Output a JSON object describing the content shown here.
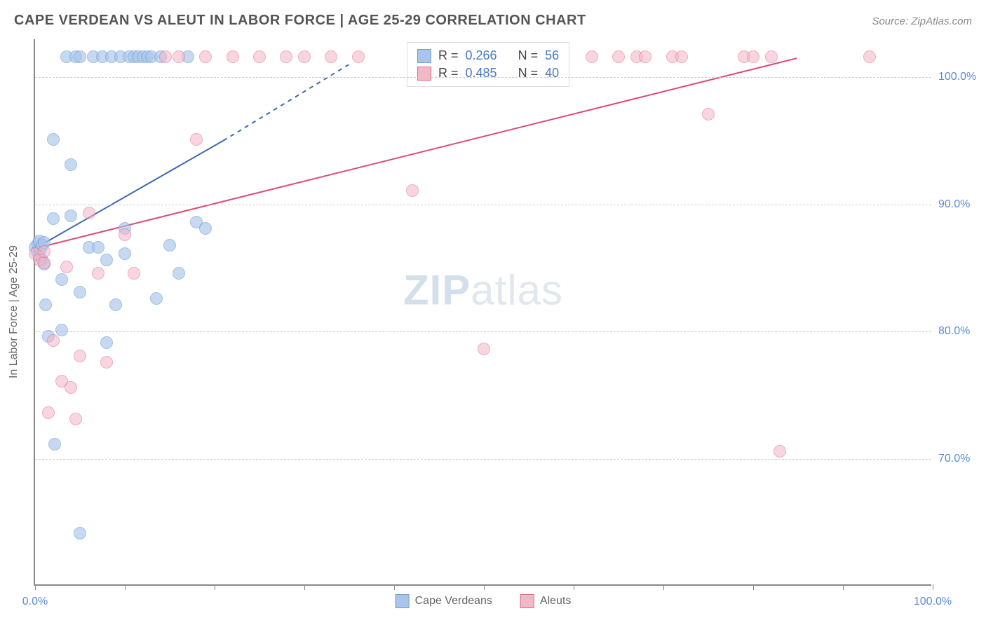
{
  "title": "CAPE VERDEAN VS ALEUT IN LABOR FORCE | AGE 25-29 CORRELATION CHART",
  "source": "Source: ZipAtlas.com",
  "ylabel": "In Labor Force | Age 25-29",
  "watermark_a": "ZIP",
  "watermark_b": "atlas",
  "chart": {
    "type": "scatter",
    "xlim": [
      0,
      100
    ],
    "ylim": [
      60,
      103
    ],
    "x_ticks": [
      0,
      10,
      20,
      30,
      40,
      50,
      60,
      70,
      80,
      90,
      100
    ],
    "x_tick_labels": {
      "0": "0.0%",
      "100": "100.0%"
    },
    "y_gridlines": [
      70,
      80,
      90,
      100
    ],
    "y_tick_labels": {
      "70": "70.0%",
      "80": "80.0%",
      "90": "90.0%",
      "100": "100.0%"
    },
    "grid_color": "#cccccc",
    "axis_color": "#888888",
    "background_color": "#ffffff",
    "tick_label_color": "#5b8bd4",
    "marker_radius": 9,
    "marker_stroke_width": 1.5,
    "series": [
      {
        "name": "Cape Verdeans",
        "fill": "#a9c6ea",
        "stroke": "#6f9fd8",
        "fill_opacity": 0.65,
        "R": "0.266",
        "N": "56",
        "regression": {
          "x1": 0,
          "y1": 86.5,
          "x2": 21,
          "y2": 95,
          "dash_x2": 35,
          "dash_y2": 101,
          "color": "#3b68b0",
          "width": 2
        },
        "points": [
          [
            0,
            86.5
          ],
          [
            0.2,
            86.2
          ],
          [
            0.3,
            86.8
          ],
          [
            0.5,
            87.0
          ],
          [
            0.5,
            85.8
          ],
          [
            0.6,
            86.4
          ],
          [
            0.8,
            86.7
          ],
          [
            0.8,
            85.5
          ],
          [
            1,
            86.9
          ],
          [
            1,
            85.2
          ],
          [
            1.2,
            82.0
          ],
          [
            1.5,
            79.5
          ],
          [
            2,
            95
          ],
          [
            2,
            88.8
          ],
          [
            2.2,
            71
          ],
          [
            3,
            80
          ],
          [
            3,
            84
          ],
          [
            3.5,
            101.5
          ],
          [
            4,
            93
          ],
          [
            4,
            89
          ],
          [
            4.5,
            101.5
          ],
          [
            5,
            101.5
          ],
          [
            5,
            83
          ],
          [
            5,
            64
          ],
          [
            6,
            86.5
          ],
          [
            6.5,
            101.5
          ],
          [
            7,
            86.5
          ],
          [
            7.5,
            101.5
          ],
          [
            8,
            79
          ],
          [
            8,
            85.5
          ],
          [
            8.5,
            101.5
          ],
          [
            9,
            82
          ],
          [
            9.5,
            101.5
          ],
          [
            10,
            88
          ],
          [
            10,
            86
          ],
          [
            10.5,
            101.5
          ],
          [
            11,
            101.5
          ],
          [
            11.5,
            101.5
          ],
          [
            12,
            101.5
          ],
          [
            12.5,
            101.5
          ],
          [
            13,
            101.5
          ],
          [
            13.5,
            82.5
          ],
          [
            14,
            101.5
          ],
          [
            15,
            86.7
          ],
          [
            16,
            84.5
          ],
          [
            17,
            101.5
          ],
          [
            18,
            88.5
          ],
          [
            19,
            88
          ]
        ]
      },
      {
        "name": "Aleuts",
        "fill": "#f5b6c6",
        "stroke": "#e06a8a",
        "fill_opacity": 0.55,
        "R": "0.485",
        "N": "40",
        "regression": {
          "x1": 0,
          "y1": 86.5,
          "x2": 85,
          "y2": 101.5,
          "dash_x2": 85,
          "dash_y2": 101.5,
          "color": "#e04a72",
          "width": 2
        },
        "points": [
          [
            0,
            86.0
          ],
          [
            0.5,
            85.5
          ],
          [
            1,
            85.3
          ],
          [
            1,
            86.2
          ],
          [
            1.5,
            73.5
          ],
          [
            2,
            79.2
          ],
          [
            3,
            76
          ],
          [
            3.5,
            85
          ],
          [
            4,
            75.5
          ],
          [
            4.5,
            73
          ],
          [
            5,
            78
          ],
          [
            6,
            89.2
          ],
          [
            7,
            84.5
          ],
          [
            8,
            77.5
          ],
          [
            10,
            87.5
          ],
          [
            11,
            84.5
          ],
          [
            14.5,
            101.5
          ],
          [
            16,
            101.5
          ],
          [
            18,
            95
          ],
          [
            19,
            101.5
          ],
          [
            22,
            101.5
          ],
          [
            25,
            101.5
          ],
          [
            28,
            101.5
          ],
          [
            30,
            101.5
          ],
          [
            33,
            101.5
          ],
          [
            36,
            101.5
          ],
          [
            42,
            91
          ],
          [
            50,
            78.5
          ],
          [
            62,
            101.5
          ],
          [
            65,
            101.5
          ],
          [
            67,
            101.5
          ],
          [
            68,
            101.5
          ],
          [
            71,
            101.5
          ],
          [
            72,
            101.5
          ],
          [
            75,
            97
          ],
          [
            79,
            101.5
          ],
          [
            80,
            101.5
          ],
          [
            82,
            101.5
          ],
          [
            83,
            70.5
          ],
          [
            93,
            101.5
          ]
        ]
      }
    ]
  },
  "stat_legend": {
    "label_R": "R =",
    "label_N": "N =",
    "value_color": "#4a7ac0"
  },
  "bottom_legend": {
    "items": [
      "Cape Verdeans",
      "Aleuts"
    ]
  }
}
